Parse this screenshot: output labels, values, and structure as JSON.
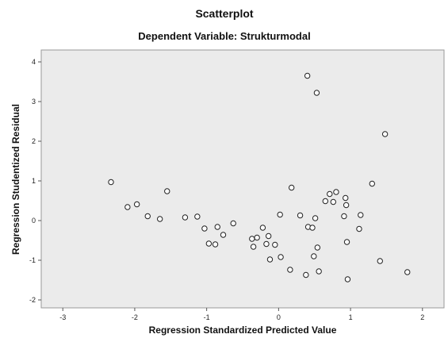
{
  "chart_data": {
    "type": "scatter",
    "title": "Scatterplot",
    "subtitle": "Dependent Variable: Strukturmodal",
    "xlabel": "Regression Standardized Predicted Value",
    "ylabel": "Regression Studentized Residual",
    "xlim": [
      -3.3,
      2.3
    ],
    "ylim": [
      -2.2,
      4.3
    ],
    "xticks": [
      -3,
      -2,
      -1,
      0,
      1,
      2
    ],
    "yticks": [
      -2,
      -1,
      0,
      1,
      2,
      3,
      4
    ],
    "grid": false,
    "colors": {
      "plot_background": "#ebebeb",
      "marker_stroke": "#222222",
      "marker_fill": "#ffffff"
    },
    "points": [
      {
        "x": -2.33,
        "y": 0.97
      },
      {
        "x": -2.1,
        "y": 0.34
      },
      {
        "x": -1.97,
        "y": 0.41
      },
      {
        "x": -1.82,
        "y": 0.11
      },
      {
        "x": -1.65,
        "y": 0.04
      },
      {
        "x": -1.55,
        "y": 0.74
      },
      {
        "x": -1.3,
        "y": 0.08
      },
      {
        "x": -1.13,
        "y": 0.1
      },
      {
        "x": -1.03,
        "y": -0.2
      },
      {
        "x": -0.97,
        "y": -0.58
      },
      {
        "x": -0.88,
        "y": -0.6
      },
      {
        "x": -0.85,
        "y": -0.16
      },
      {
        "x": -0.77,
        "y": -0.36
      },
      {
        "x": -0.63,
        "y": -0.07
      },
      {
        "x": -0.37,
        "y": -0.46
      },
      {
        "x": -0.35,
        "y": -0.66
      },
      {
        "x": -0.3,
        "y": -0.43
      },
      {
        "x": -0.22,
        "y": -0.18
      },
      {
        "x": -0.17,
        "y": -0.59
      },
      {
        "x": -0.14,
        "y": -0.39
      },
      {
        "x": -0.12,
        "y": -0.98
      },
      {
        "x": -0.05,
        "y": -0.61
      },
      {
        "x": 0.02,
        "y": 0.15
      },
      {
        "x": 0.03,
        "y": -0.92
      },
      {
        "x": 0.16,
        "y": -1.24
      },
      {
        "x": 0.18,
        "y": 0.83
      },
      {
        "x": 0.3,
        "y": 0.13
      },
      {
        "x": 0.38,
        "y": -1.37
      },
      {
        "x": 0.4,
        "y": 3.65
      },
      {
        "x": 0.41,
        "y": -0.16
      },
      {
        "x": 0.47,
        "y": -0.18
      },
      {
        "x": 0.49,
        "y": -0.9
      },
      {
        "x": 0.51,
        "y": 0.06
      },
      {
        "x": 0.53,
        "y": 3.22
      },
      {
        "x": 0.54,
        "y": -0.68
      },
      {
        "x": 0.56,
        "y": -1.28
      },
      {
        "x": 0.65,
        "y": 0.49
      },
      {
        "x": 0.71,
        "y": 0.67
      },
      {
        "x": 0.76,
        "y": 0.47
      },
      {
        "x": 0.8,
        "y": 0.72
      },
      {
        "x": 0.91,
        "y": 0.11
      },
      {
        "x": 0.93,
        "y": 0.57
      },
      {
        "x": 0.94,
        "y": 0.39
      },
      {
        "x": 0.95,
        "y": -0.54
      },
      {
        "x": 0.96,
        "y": -1.48
      },
      {
        "x": 1.12,
        "y": -0.21
      },
      {
        "x": 1.14,
        "y": 0.14
      },
      {
        "x": 1.3,
        "y": 0.93
      },
      {
        "x": 1.41,
        "y": -1.02
      },
      {
        "x": 1.48,
        "y": 2.18
      },
      {
        "x": 1.79,
        "y": -1.3
      }
    ]
  }
}
